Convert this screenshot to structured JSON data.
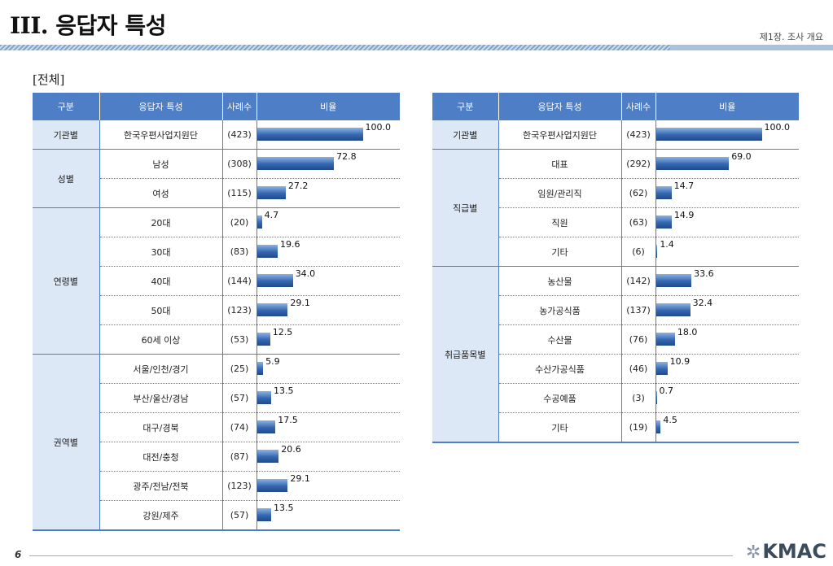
{
  "header": {
    "title": "III. 응답자 특성",
    "chapter": "제1장. 조사 개요",
    "subtitle": "[전체]"
  },
  "columns": {
    "group": "구분",
    "item": "응답자 특성",
    "count": "사례수",
    "ratio": "비율"
  },
  "left_table": [
    {
      "group": "기관별",
      "rows": [
        {
          "label": "한국우편사업지원단",
          "count": "(423)",
          "value": 100.0
        }
      ]
    },
    {
      "group": "성별",
      "rows": [
        {
          "label": "남성",
          "count": "(308)",
          "value": 72.8
        },
        {
          "label": "여성",
          "count": "(115)",
          "value": 27.2
        }
      ]
    },
    {
      "group": "연령별",
      "rows": [
        {
          "label": "20대",
          "count": "(20)",
          "value": 4.7
        },
        {
          "label": "30대",
          "count": "(83)",
          "value": 19.6
        },
        {
          "label": "40대",
          "count": "(144)",
          "value": 34.0
        },
        {
          "label": "50대",
          "count": "(123)",
          "value": 29.1
        },
        {
          "label": "60세 이상",
          "count": "(53)",
          "value": 12.5
        }
      ]
    },
    {
      "group": "권역별",
      "rows": [
        {
          "label": "서울/인천/경기",
          "count": "(25)",
          "value": 5.9
        },
        {
          "label": "부산/울산/경남",
          "count": "(57)",
          "value": 13.5
        },
        {
          "label": "대구/경북",
          "count": "(74)",
          "value": 17.5
        },
        {
          "label": "대전/충청",
          "count": "(87)",
          "value": 20.6
        },
        {
          "label": "광주/전남/전북",
          "count": "(123)",
          "value": 29.1
        },
        {
          "label": "강원/제주",
          "count": "(57)",
          "value": 13.5
        }
      ]
    }
  ],
  "right_table": [
    {
      "group": "기관별",
      "rows": [
        {
          "label": "한국우편사업지원단",
          "count": "(423)",
          "value": 100.0
        }
      ]
    },
    {
      "group": "직급별",
      "rows": [
        {
          "label": "대표",
          "count": "(292)",
          "value": 69.0
        },
        {
          "label": "임원/관리직",
          "count": "(62)",
          "value": 14.7
        },
        {
          "label": "직원",
          "count": "(63)",
          "value": 14.9
        },
        {
          "label": "기타",
          "count": "(6)",
          "value": 1.4
        }
      ]
    },
    {
      "group": "취급품목별",
      "rows": [
        {
          "label": "농산물",
          "count": "(142)",
          "value": 33.6
        },
        {
          "label": "농가공식품",
          "count": "(137)",
          "value": 32.4
        },
        {
          "label": "수산물",
          "count": "(76)",
          "value": 18.0
        },
        {
          "label": "수산가공식품",
          "count": "(46)",
          "value": 10.9
        },
        {
          "label": "수공예품",
          "count": "(3)",
          "value": 0.7
        },
        {
          "label": "기타",
          "count": "(19)",
          "value": 4.5
        }
      ]
    }
  ],
  "footer": {
    "page": "6",
    "logo": "KMAC"
  }
}
